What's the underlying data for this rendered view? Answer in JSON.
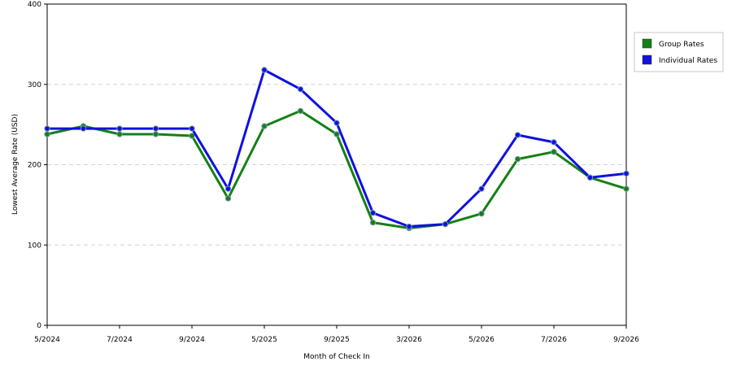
{
  "chart_data": {
    "type": "line",
    "xlabel": "Month of Check In",
    "ylabel": "Lowest Average Rate (USD)",
    "ylim": [
      0,
      400
    ],
    "yticks": [
      0,
      100,
      200,
      300,
      400
    ],
    "x_tick_labels": [
      "5/2024",
      "7/2024",
      "9/2024",
      "5/2025",
      "9/2025",
      "3/2026",
      "5/2026",
      "7/2026",
      "9/2026"
    ],
    "grid": "horizontal dashed",
    "legend_position": "top-right",
    "series": [
      {
        "name": "Group Rates",
        "color": "#158015",
        "values": [
          238,
          248,
          238,
          238,
          236,
          158,
          248,
          267,
          238,
          128,
          121,
          126,
          139,
          207,
          216,
          184,
          170
        ]
      },
      {
        "name": "Individual Rates",
        "color": "#1010E0",
        "values": [
          245,
          245,
          245,
          245,
          245,
          170,
          318,
          294,
          252,
          140,
          123,
          126,
          170,
          237,
          228,
          184,
          189
        ]
      }
    ]
  }
}
